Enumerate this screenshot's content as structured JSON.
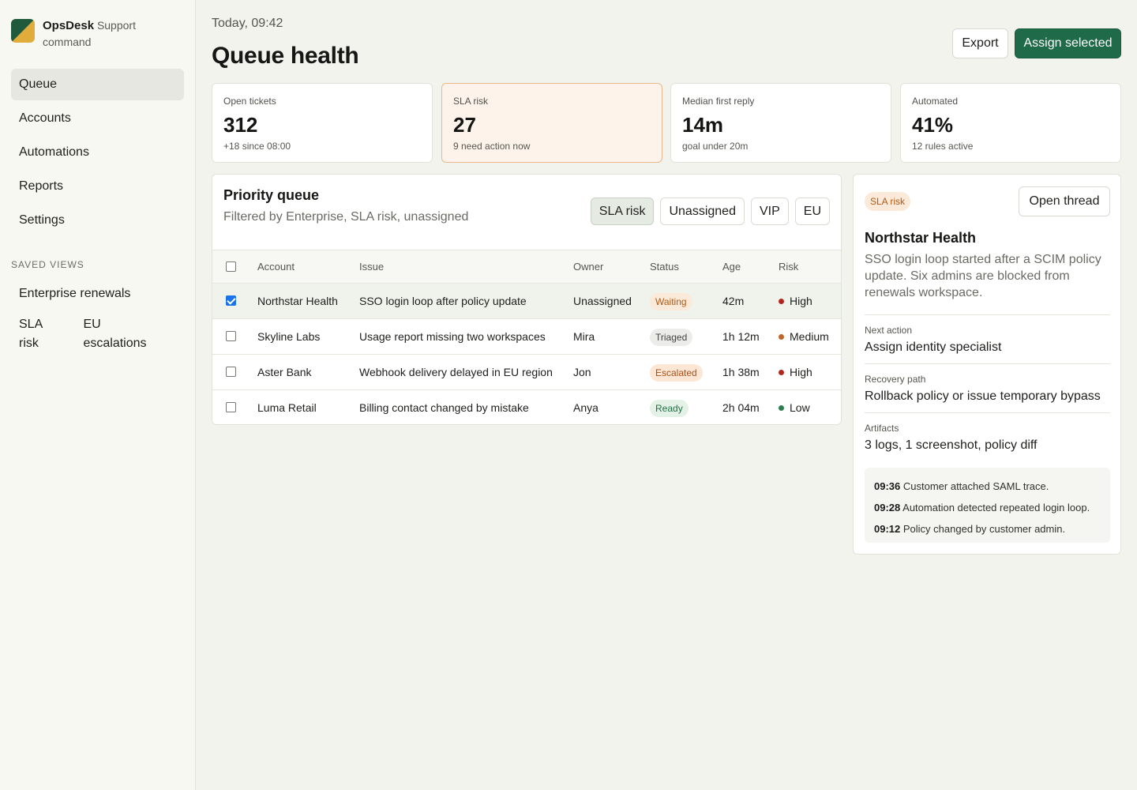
{
  "brand": {
    "name": "OpsDesk",
    "sub_inline": "Support",
    "sub_line2": "command"
  },
  "nav": [
    {
      "label": "Queue",
      "active": true
    },
    {
      "label": "Accounts",
      "active": false
    },
    {
      "label": "Automations",
      "active": false
    },
    {
      "label": "Reports",
      "active": false
    },
    {
      "label": "Settings",
      "active": false
    }
  ],
  "saved_views": {
    "heading": "SAVED VIEWS",
    "items": [
      "Enterprise renewals",
      "SLA risk",
      "EU escalations"
    ]
  },
  "header": {
    "date": "Today, 09:42",
    "title": "Queue health",
    "export_label": "Export",
    "assign_label": "Assign selected"
  },
  "stats": [
    {
      "label": "Open tickets",
      "value": "312",
      "note": "+18 since 08:00"
    },
    {
      "label": "SLA risk",
      "value": "27",
      "note": "9 need action now"
    },
    {
      "label": "Median first reply",
      "value": "14m",
      "note": "goal under 20m"
    },
    {
      "label": "Automated",
      "value": "41%",
      "note": "12 rules active"
    }
  ],
  "queue": {
    "title": "Priority queue",
    "subtitle": "Filtered by Enterprise, SLA risk, unassigned",
    "filters": [
      {
        "label": "SLA risk",
        "active": true
      },
      {
        "label": "Unassigned",
        "active": false
      },
      {
        "label": "VIP",
        "active": false
      },
      {
        "label": "EU",
        "active": false
      }
    ],
    "columns": [
      "Account",
      "Issue",
      "Owner",
      "Status",
      "Age",
      "Risk"
    ],
    "rows": [
      {
        "account": "Northstar Health",
        "issue": "SSO login loop after policy update",
        "owner": "Unassigned",
        "status": "Waiting",
        "age": "42m",
        "risk": "High",
        "checked": true
      },
      {
        "account": "Skyline Labs",
        "issue": "Usage report missing two workspaces",
        "owner": "Mira",
        "status": "Triaged",
        "age": "1h 12m",
        "risk": "Medium",
        "checked": false
      },
      {
        "account": "Aster Bank",
        "issue": "Webhook delivery delayed in EU region",
        "owner": "Jon",
        "status": "Escalated",
        "age": "1h 38m",
        "risk": "High",
        "checked": false
      },
      {
        "account": "Luma Retail",
        "issue": "Billing contact changed by mistake",
        "owner": "Anya",
        "status": "Ready",
        "age": "2h 04m",
        "risk": "Low",
        "checked": false
      }
    ]
  },
  "risk_colors": {
    "High": "#b3261e",
    "Medium": "#c0662a",
    "Low": "#2e7d4f"
  },
  "detail": {
    "badge": "SLA risk",
    "open_label": "Open thread",
    "title": "Northstar Health",
    "description": "SSO login loop started after a SCIM policy update. Six admins are blocked from renewals workspace.",
    "next_action_label": "Next action",
    "next_action": "Assign identity specialist",
    "recovery_label": "Recovery path",
    "recovery": "Rollback policy or issue temporary bypass",
    "artifacts_label": "Artifacts",
    "artifacts": "3 logs, 1 screenshot, policy diff",
    "timeline": [
      {
        "time": "09:36",
        "text": "Customer attached SAML trace."
      },
      {
        "time": "09:28",
        "text": "Automation detected repeated login loop."
      },
      {
        "time": "09:12",
        "text": "Policy changed by customer admin."
      }
    ]
  },
  "colors": {
    "accent": "#1f6a48",
    "warn_bg": "#fdf3eb",
    "warn_border": "#e8b98f"
  }
}
